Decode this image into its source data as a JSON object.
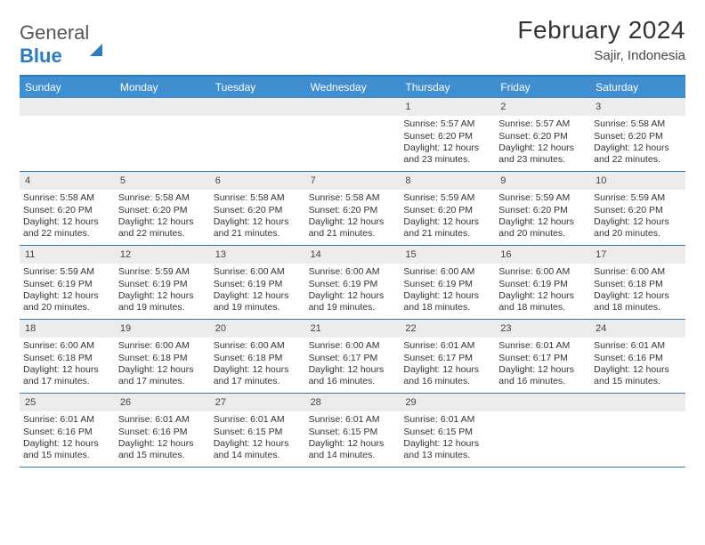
{
  "logo": {
    "word1": "General",
    "word2": "Blue"
  },
  "title": "February 2024",
  "location": "Sajir, Indonesia",
  "header_color": "#3f8fd0",
  "border_color": "#2b7bbf",
  "daybar_color": "#ececec",
  "days_of_week": [
    "Sunday",
    "Monday",
    "Tuesday",
    "Wednesday",
    "Thursday",
    "Friday",
    "Saturday"
  ],
  "weeks": [
    [
      null,
      null,
      null,
      null,
      {
        "n": "1",
        "sr": "5:57 AM",
        "ss": "6:20 PM",
        "dl": "12 hours and 23 minutes."
      },
      {
        "n": "2",
        "sr": "5:57 AM",
        "ss": "6:20 PM",
        "dl": "12 hours and 23 minutes."
      },
      {
        "n": "3",
        "sr": "5:58 AM",
        "ss": "6:20 PM",
        "dl": "12 hours and 22 minutes."
      }
    ],
    [
      {
        "n": "4",
        "sr": "5:58 AM",
        "ss": "6:20 PM",
        "dl": "12 hours and 22 minutes."
      },
      {
        "n": "5",
        "sr": "5:58 AM",
        "ss": "6:20 PM",
        "dl": "12 hours and 22 minutes."
      },
      {
        "n": "6",
        "sr": "5:58 AM",
        "ss": "6:20 PM",
        "dl": "12 hours and 21 minutes."
      },
      {
        "n": "7",
        "sr": "5:58 AM",
        "ss": "6:20 PM",
        "dl": "12 hours and 21 minutes."
      },
      {
        "n": "8",
        "sr": "5:59 AM",
        "ss": "6:20 PM",
        "dl": "12 hours and 21 minutes."
      },
      {
        "n": "9",
        "sr": "5:59 AM",
        "ss": "6:20 PM",
        "dl": "12 hours and 20 minutes."
      },
      {
        "n": "10",
        "sr": "5:59 AM",
        "ss": "6:20 PM",
        "dl": "12 hours and 20 minutes."
      }
    ],
    [
      {
        "n": "11",
        "sr": "5:59 AM",
        "ss": "6:19 PM",
        "dl": "12 hours and 20 minutes."
      },
      {
        "n": "12",
        "sr": "5:59 AM",
        "ss": "6:19 PM",
        "dl": "12 hours and 19 minutes."
      },
      {
        "n": "13",
        "sr": "6:00 AM",
        "ss": "6:19 PM",
        "dl": "12 hours and 19 minutes."
      },
      {
        "n": "14",
        "sr": "6:00 AM",
        "ss": "6:19 PM",
        "dl": "12 hours and 19 minutes."
      },
      {
        "n": "15",
        "sr": "6:00 AM",
        "ss": "6:19 PM",
        "dl": "12 hours and 18 minutes."
      },
      {
        "n": "16",
        "sr": "6:00 AM",
        "ss": "6:19 PM",
        "dl": "12 hours and 18 minutes."
      },
      {
        "n": "17",
        "sr": "6:00 AM",
        "ss": "6:18 PM",
        "dl": "12 hours and 18 minutes."
      }
    ],
    [
      {
        "n": "18",
        "sr": "6:00 AM",
        "ss": "6:18 PM",
        "dl": "12 hours and 17 minutes."
      },
      {
        "n": "19",
        "sr": "6:00 AM",
        "ss": "6:18 PM",
        "dl": "12 hours and 17 minutes."
      },
      {
        "n": "20",
        "sr": "6:00 AM",
        "ss": "6:18 PM",
        "dl": "12 hours and 17 minutes."
      },
      {
        "n": "21",
        "sr": "6:00 AM",
        "ss": "6:17 PM",
        "dl": "12 hours and 16 minutes."
      },
      {
        "n": "22",
        "sr": "6:01 AM",
        "ss": "6:17 PM",
        "dl": "12 hours and 16 minutes."
      },
      {
        "n": "23",
        "sr": "6:01 AM",
        "ss": "6:17 PM",
        "dl": "12 hours and 16 minutes."
      },
      {
        "n": "24",
        "sr": "6:01 AM",
        "ss": "6:16 PM",
        "dl": "12 hours and 15 minutes."
      }
    ],
    [
      {
        "n": "25",
        "sr": "6:01 AM",
        "ss": "6:16 PM",
        "dl": "12 hours and 15 minutes."
      },
      {
        "n": "26",
        "sr": "6:01 AM",
        "ss": "6:16 PM",
        "dl": "12 hours and 15 minutes."
      },
      {
        "n": "27",
        "sr": "6:01 AM",
        "ss": "6:15 PM",
        "dl": "12 hours and 14 minutes."
      },
      {
        "n": "28",
        "sr": "6:01 AM",
        "ss": "6:15 PM",
        "dl": "12 hours and 14 minutes."
      },
      {
        "n": "29",
        "sr": "6:01 AM",
        "ss": "6:15 PM",
        "dl": "12 hours and 13 minutes."
      },
      null,
      null
    ]
  ],
  "labels": {
    "sunrise": "Sunrise: ",
    "sunset": "Sunset: ",
    "daylight": "Daylight: "
  }
}
